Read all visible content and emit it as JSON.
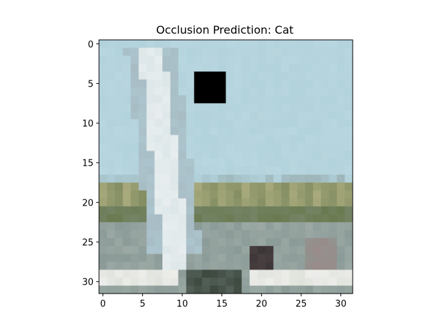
{
  "chart_data": {
    "type": "heatmap",
    "title": "Occlusion Prediction: Cat",
    "xlabel": "",
    "ylabel": "",
    "grid": false,
    "x_range": [
      -0.5,
      31.5
    ],
    "y_range": [
      31.5,
      -0.5
    ],
    "x_ticks": [
      0,
      5,
      10,
      15,
      20,
      25,
      30
    ],
    "y_ticks": [
      0,
      5,
      10,
      15,
      20,
      25,
      30
    ],
    "image_size": [
      32,
      32
    ],
    "occlusion_patch": {
      "row_start": 4,
      "row_end": 7,
      "col_start": 12,
      "col_end": 15,
      "color": "#000000"
    },
    "colors": {
      "sky": "#b2d2dc",
      "sail": "#dde6e8",
      "sail_shadow": "#a8bcc4",
      "shore_yellow": "#a8aa7c",
      "shore_green": "#6a7a50",
      "water": "#8a9a96",
      "foam": "#e0e2dc",
      "hull_dark": "#3e4a40",
      "boat_dark": "#2e2a2c",
      "occlusion": "#000000"
    }
  }
}
